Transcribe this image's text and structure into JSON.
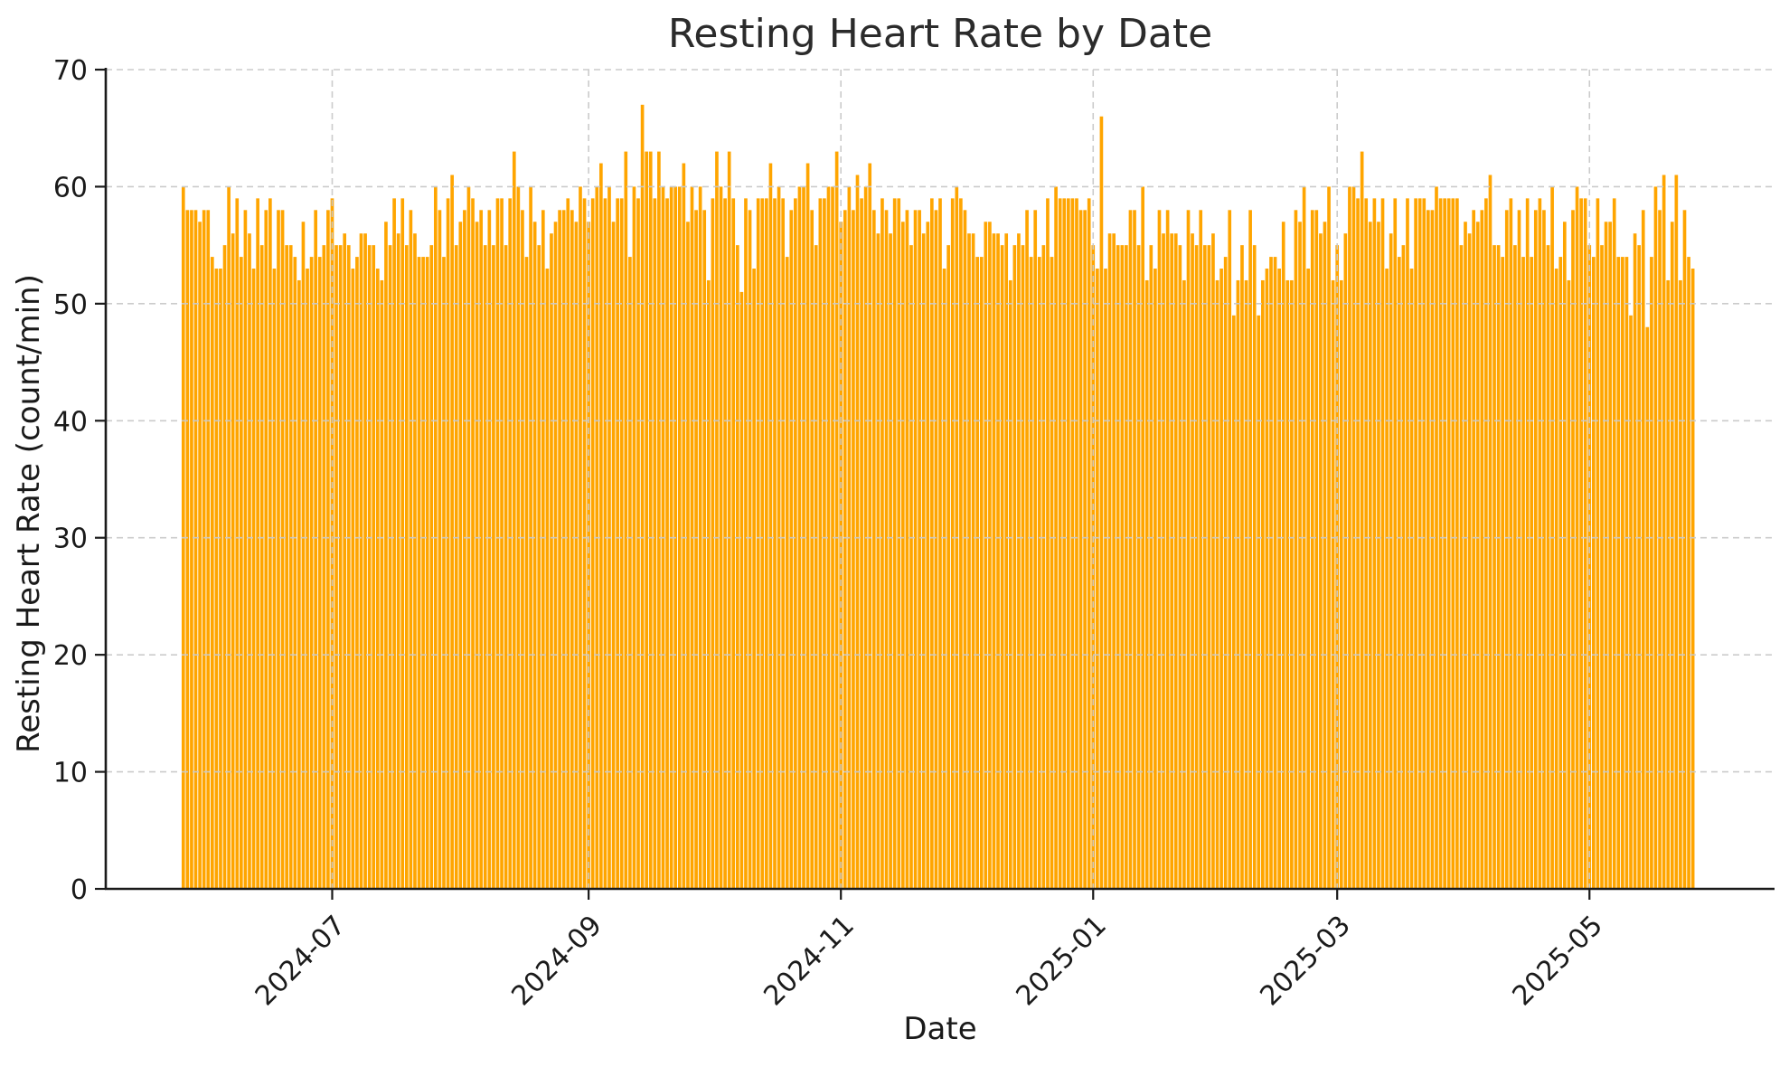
{
  "chart_data": {
    "type": "bar",
    "title": "Resting Heart Rate by Date",
    "xlabel": "Date",
    "ylabel": "Resting Heart Rate (count/min)",
    "start_date": "2024-05-26",
    "n_days": 366,
    "ylim": [
      0,
      70
    ],
    "y_ticks": [
      0,
      10,
      20,
      30,
      40,
      50,
      60,
      70
    ],
    "x_ticks": [
      {
        "label": "2024-07",
        "day_index": 36
      },
      {
        "label": "2024-09",
        "day_index": 98
      },
      {
        "label": "2024-11",
        "day_index": 159
      },
      {
        "label": "2025-01",
        "day_index": 220
      },
      {
        "label": "2025-03",
        "day_index": 279
      },
      {
        "label": "2025-05",
        "day_index": 340
      }
    ],
    "grid": true,
    "grid_style": "dashed",
    "grid_color": "#c9c9c9",
    "bar_color": "#FFA500",
    "axis_color": "#1a1a1a",
    "legend": null,
    "values": [
      60,
      58,
      58,
      58,
      57,
      58,
      58,
      54,
      53,
      53,
      55,
      60,
      56,
      59,
      54,
      58,
      56,
      53,
      59,
      55,
      58,
      59,
      53,
      58,
      58,
      55,
      55,
      54,
      52,
      57,
      53,
      54,
      58,
      54,
      55,
      58,
      59,
      55,
      55,
      56,
      55,
      53,
      54,
      56,
      56,
      55,
      55,
      53,
      52,
      57,
      55,
      59,
      56,
      59,
      55,
      58,
      56,
      54,
      54,
      54,
      55,
      60,
      58,
      54,
      59,
      61,
      55,
      57,
      58,
      60,
      59,
      57,
      58,
      55,
      58,
      55,
      59,
      59,
      55,
      59,
      63,
      60,
      58,
      54,
      60,
      57,
      55,
      58,
      53,
      56,
      57,
      58,
      58,
      59,
      58,
      57,
      60,
      59,
      57,
      59,
      60,
      62,
      59,
      60,
      57,
      59,
      59,
      63,
      54,
      60,
      59,
      67,
      63,
      63,
      59,
      63,
      60,
      59,
      60,
      60,
      60,
      62,
      57,
      60,
      58,
      60,
      58,
      52,
      59,
      63,
      60,
      59,
      63,
      59,
      55,
      51,
      59,
      58,
      53,
      59,
      59,
      59,
      62,
      59,
      60,
      59,
      54,
      58,
      59,
      60,
      60,
      62,
      58,
      55,
      59,
      59,
      60,
      60,
      63,
      57,
      58,
      60,
      58,
      61,
      59,
      60,
      62,
      58,
      56,
      59,
      58,
      56,
      59,
      59,
      57,
      58,
      55,
      58,
      58,
      56,
      57,
      59,
      58,
      59,
      53,
      55,
      59,
      60,
      59,
      58,
      56,
      56,
      54,
      54,
      57,
      57,
      56,
      56,
      55,
      56,
      52,
      55,
      56,
      55,
      58,
      54,
      58,
      54,
      55,
      59,
      54,
      60,
      59,
      59,
      59,
      59,
      59,
      58,
      58,
      59,
      55,
      53,
      66,
      53,
      56,
      56,
      55,
      55,
      55,
      58,
      58,
      55,
      60,
      52,
      55,
      53,
      58,
      56,
      58,
      56,
      56,
      55,
      52,
      58,
      56,
      55,
      58,
      55,
      55,
      56,
      52,
      53,
      54,
      58,
      49,
      52,
      55,
      52,
      58,
      55,
      49,
      52,
      53,
      54,
      54,
      53,
      57,
      52,
      52,
      58,
      57,
      60,
      53,
      58,
      58,
      56,
      57,
      60,
      52,
      55,
      52,
      56,
      60,
      60,
      59,
      63,
      59,
      57,
      59,
      57,
      59,
      53,
      56,
      59,
      54,
      55,
      59,
      53,
      59,
      59,
      59,
      58,
      58,
      60,
      59,
      59,
      59,
      59,
      59,
      55,
      57,
      56,
      58,
      57,
      58,
      59,
      61,
      55,
      55,
      54,
      58,
      59,
      55,
      58,
      54,
      59,
      54,
      58,
      59,
      58,
      55,
      60,
      53,
      54,
      57,
      52,
      58,
      60,
      59,
      59,
      55,
      54,
      59,
      55,
      57,
      57,
      59,
      54,
      54,
      54,
      49,
      56,
      55,
      58,
      48,
      54,
      60,
      58,
      61,
      52,
      57,
      61,
      52,
      58,
      54,
      53
    ]
  }
}
